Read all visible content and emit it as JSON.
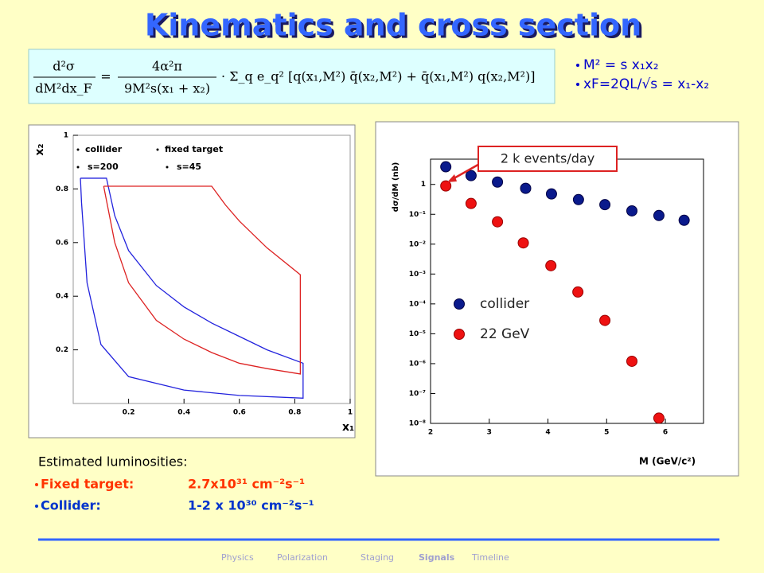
{
  "title": "Kinematics and cross section",
  "formula": {
    "lhs_numerator": "d²σ",
    "lhs_denominator": "dM²dx_F",
    "equals": "=",
    "rhs_numerator": "4α²π",
    "rhs_denominator": "9M²s(x₁ + x₂)",
    "sum": "· Σ_q e_q² [q(x₁,M²) q̄(x₂,M²) + q̄(x₁,M²) q(x₂,M²)]"
  },
  "bullets": [
    "M² = s x₁x₂",
    "xF=2QL/√s = x₁-x₂"
  ],
  "luminosities": {
    "heading": "Estimated luminosities:",
    "rows": [
      {
        "label": "Fixed target:",
        "value": "2.7x10³¹ cm⁻²s⁻¹",
        "color": "#ff3300"
      },
      {
        "label": "Collider:",
        "value": "1-2 x 10³⁰ cm⁻²s⁻¹",
        "color": "#0033cc"
      }
    ]
  },
  "nav": {
    "items": [
      "Physics",
      "Polarization",
      "Staging",
      "Signals",
      "Timeline"
    ],
    "active": 3
  },
  "chart_data": [
    {
      "type": "line",
      "xlabel": "x₁",
      "ylabel": "x₂",
      "xlim": [
        0,
        1
      ],
      "ylim": [
        0,
        1
      ],
      "xticks": [
        0.2,
        0.4,
        0.6,
        0.8,
        1
      ],
      "yticks": [
        0.2,
        0.4,
        0.6,
        0.8,
        1
      ],
      "legend_notes": [
        "s=200",
        "s=45"
      ],
      "series": [
        {
          "name": "collider",
          "color": "#2222dd",
          "x": [
            0.026,
            0.12,
            0.15,
            0.2,
            0.3,
            0.4,
            0.5,
            0.6,
            0.7,
            0.83,
            0.83,
            0.6,
            0.4,
            0.2,
            0.1,
            0.05,
            0.03,
            0.026
          ],
          "values": [
            0.84,
            0.84,
            0.7,
            0.57,
            0.44,
            0.36,
            0.3,
            0.25,
            0.2,
            0.15,
            0.02,
            0.03,
            0.05,
            0.1,
            0.22,
            0.45,
            0.75,
            0.84
          ]
        },
        {
          "name": "fixed target",
          "color": "#dd2222",
          "x": [
            0.11,
            0.5,
            0.55,
            0.6,
            0.7,
            0.82,
            0.82,
            0.7,
            0.6,
            0.5,
            0.4,
            0.3,
            0.2,
            0.15,
            0.11
          ],
          "values": [
            0.81,
            0.81,
            0.74,
            0.68,
            0.58,
            0.48,
            0.11,
            0.13,
            0.15,
            0.19,
            0.24,
            0.31,
            0.45,
            0.6,
            0.81
          ]
        }
      ]
    },
    {
      "type": "scatter",
      "xlabel": "M (GeV/c²)",
      "ylabel": "dσ/dM (nb)",
      "log_y": true,
      "xlim": [
        2,
        6.65
      ],
      "ylim": [
        1e-08,
        7
      ],
      "xticks": [
        2,
        3,
        4,
        5,
        6
      ],
      "yticks": [
        1,
        {
          "value": 0.1,
          "label": "10⁻¹"
        },
        {
          "value": 0.01,
          "label": "10⁻²"
        },
        {
          "value": 0.001,
          "label": "10⁻³"
        },
        {
          "value": 0.0001,
          "label": "10⁻⁴"
        },
        {
          "value": 1e-05,
          "label": "10⁻⁵"
        },
        {
          "value": 1e-06,
          "label": "10⁻⁶"
        },
        {
          "value": 1e-07,
          "label": "10⁻⁷"
        },
        {
          "value": 1e-08,
          "label": "10⁻⁸"
        }
      ],
      "annotation": "2 k events/day",
      "series": [
        {
          "name": "collider",
          "color": "#0a1a8c",
          "x": [
            2.26,
            2.69,
            3.14,
            3.62,
            4.06,
            4.52,
            4.97,
            5.43,
            5.89,
            6.32
          ],
          "values": [
            3.9,
            1.97,
            1.2,
            0.74,
            0.48,
            0.31,
            0.21,
            0.13,
            0.091,
            0.063
          ]
        },
        {
          "name": "22 GeV",
          "color": "#ee1111",
          "x": [
            2.26,
            2.69,
            3.14,
            3.58,
            4.05,
            4.51,
            4.97,
            5.43,
            5.89
          ],
          "values": [
            0.89,
            0.23,
            0.056,
            0.011,
            0.0019,
            0.00025,
            2.8e-05,
            1.2e-06,
            1.5e-08
          ]
        }
      ]
    }
  ]
}
